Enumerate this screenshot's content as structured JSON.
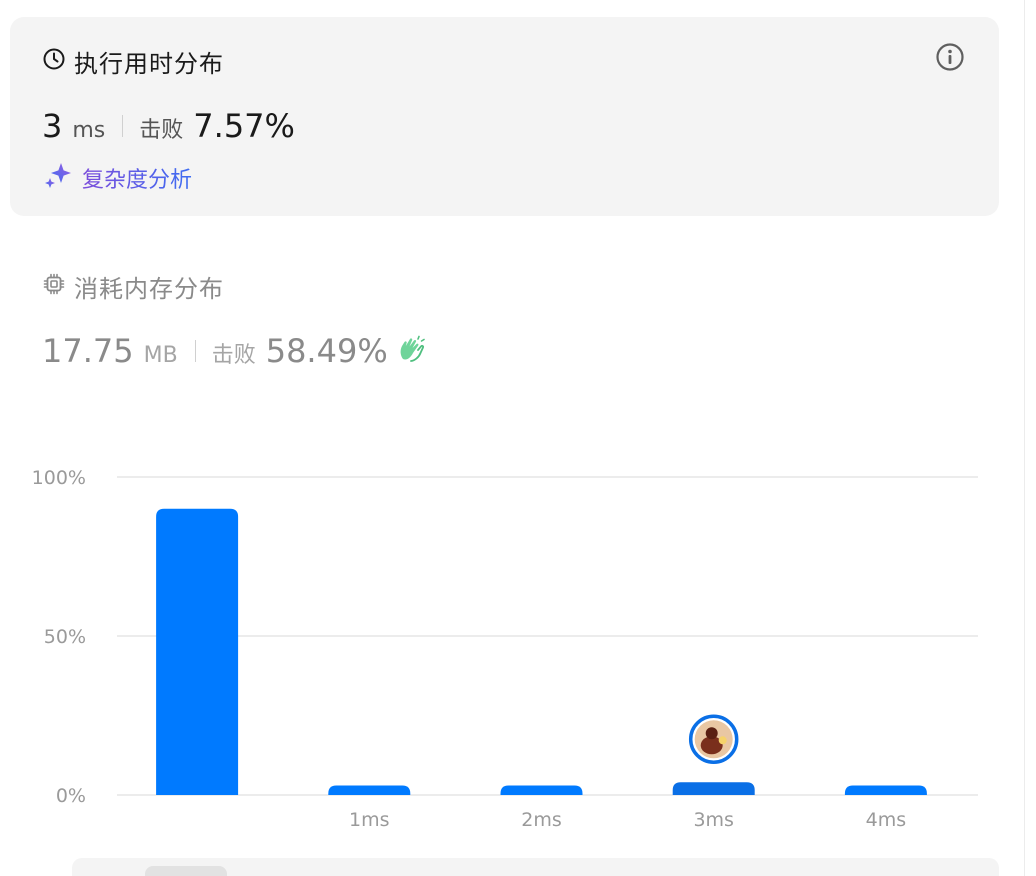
{
  "runtime": {
    "title": "执行用时分布",
    "value": "3",
    "unit": "ms",
    "beats_label": "击败",
    "beats_value": "7.57%",
    "complexity_link": "复杂度分析",
    "icons": {
      "title": "clock-icon",
      "info": "info-icon",
      "link": "sparkle-icon"
    }
  },
  "memory": {
    "title": "消耗内存分布",
    "value": "17.75",
    "unit": "MB",
    "beats_label": "击败",
    "beats_value": "58.49%",
    "icons": {
      "title": "chip-icon",
      "badge": "clap-icon"
    }
  },
  "colors": {
    "bar": "#007aff",
    "bar_highlight": "#0a6fe6",
    "grid": "#e6e6e6",
    "tick": "#9a9a9a",
    "link_gradient_start": "#7c4ddb",
    "link_gradient_end": "#3d6df2",
    "clap": "#5cc98a"
  },
  "chart_data": {
    "type": "bar",
    "categories": [
      "",
      "1ms",
      "2ms",
      "3ms",
      "4ms"
    ],
    "values": [
      90,
      3,
      3,
      4,
      3
    ],
    "highlight_category": "3ms",
    "yticks": [
      "0%",
      "50%",
      "100%"
    ],
    "ylim": [
      0,
      100
    ],
    "grid": true,
    "marker": "user-avatar"
  }
}
